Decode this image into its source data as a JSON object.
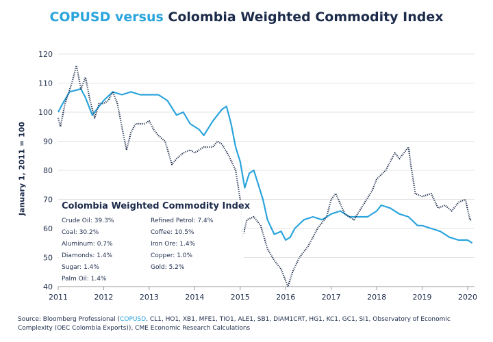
{
  "title": {
    "highlight": "COPUSD versus",
    "rest": "Colombia Weighted Commodity Index"
  },
  "colors": {
    "copusd": "#2aa4dc",
    "index": "#1c2b4a",
    "grid": "#e3e3e3"
  },
  "legend": {
    "title": "Colombia Weighted Commodity Index",
    "left": [
      "Crude Oil: 39.3%",
      "Coal: 30.2%",
      "Aluminum: 0.7%",
      "Diamonds: 1.4%",
      "Sugar: 1.4%",
      "Palm Oil: 1.4%"
    ],
    "right": [
      "Refined Petrol: 7.4%",
      "Coffee: 10.5%",
      "Iron Ore: 1.4%",
      "Copper: 1.0%",
      "Gold: 5.2%"
    ]
  },
  "source": {
    "prefix": "Source: Bloomberg Professional (",
    "highlight": "COPUSD",
    "rest": ", CL1, HO1, XB1, MFE1, TIO1, ALE1, SB1, DIAM1CRT, HG1, KC1, GC1, SI1, Observatory of Economic Complexity (OEC Colombia Exports)), CME Economic Research Calculations"
  },
  "chart_data": {
    "type": "line",
    "title": "COPUSD versus Colombia Weighted Commodity Index",
    "ylabel": "January 1, 2011 = 100",
    "xlabel": "",
    "xlim": [
      2011,
      2020.15
    ],
    "ylim": [
      40,
      120
    ],
    "xticks": [
      "2011",
      "2012",
      "2013",
      "2014",
      "2015",
      "2016",
      "2017",
      "2018",
      "2019",
      "2020"
    ],
    "yticks": [
      "40",
      "50",
      "60",
      "70",
      "80",
      "90",
      "100",
      "110",
      "120"
    ],
    "grid": true,
    "series": [
      {
        "key": "copusd",
        "style": "solid",
        "x": [
          2011.0,
          2011.1,
          2011.25,
          2011.5,
          2011.6,
          2011.75,
          2011.9,
          2012.0,
          2012.2,
          2012.4,
          2012.6,
          2012.8,
          2013.0,
          2013.2,
          2013.4,
          2013.6,
          2013.75,
          2013.9,
          2014.1,
          2014.2,
          2014.4,
          2014.5,
          2014.6,
          2014.7,
          2014.8,
          2014.9,
          2015.0,
          2015.1,
          2015.2,
          2015.3,
          2015.4,
          2015.5,
          2015.6,
          2015.75,
          2015.9,
          2016.0,
          2016.1,
          2016.2,
          2016.4,
          2016.6,
          2016.8,
          2017.0,
          2017.2,
          2017.4,
          2017.6,
          2017.8,
          2018.0,
          2018.1,
          2018.3,
          2018.5,
          2018.7,
          2018.9,
          2019.0,
          2019.2,
          2019.4,
          2019.6,
          2019.8,
          2020.0,
          2020.1
        ],
        "y": [
          100,
          103,
          107,
          108,
          105,
          99,
          102,
          104,
          107,
          106,
          107,
          106,
          106,
          106,
          104,
          99,
          100,
          96,
          94,
          92,
          97,
          99,
          101,
          102,
          96,
          88,
          83,
          74,
          79,
          80,
          75,
          70,
          63,
          58,
          59,
          56,
          57,
          60,
          63,
          64,
          63,
          65,
          66,
          64,
          64,
          64,
          66,
          68,
          67,
          65,
          64,
          61,
          61,
          60,
          59,
          57,
          56,
          56,
          55
        ]
      },
      {
        "key": "index",
        "style": "dotted",
        "x": [
          2011.0,
          2011.05,
          2011.15,
          2011.3,
          2011.4,
          2011.5,
          2011.6,
          2011.7,
          2011.8,
          2011.9,
          2012.0,
          2012.1,
          2012.2,
          2012.3,
          2012.4,
          2012.5,
          2012.6,
          2012.7,
          2012.9,
          2013.0,
          2013.1,
          2013.2,
          2013.35,
          2013.5,
          2013.6,
          2013.75,
          2013.9,
          2014.0,
          2014.2,
          2014.4,
          2014.5,
          2014.6,
          2014.75,
          2014.9,
          2015.0,
          2015.05,
          2015.15,
          2015.3,
          2015.45,
          2015.6,
          2015.75,
          2015.9,
          2016.0,
          2016.05,
          2016.15,
          2016.3,
          2016.5,
          2016.7,
          2016.9,
          2017.0,
          2017.1,
          2017.3,
          2017.5,
          2017.7,
          2017.9,
          2018.0,
          2018.2,
          2018.4,
          2018.5,
          2018.7,
          2018.75,
          2018.85,
          2019.0,
          2019.2,
          2019.35,
          2019.5,
          2019.65,
          2019.8,
          2019.95,
          2020.05,
          2020.1
        ],
        "y": [
          98,
          95,
          103,
          110,
          116,
          108,
          112,
          104,
          98,
          103,
          103,
          104,
          107,
          103,
          95,
          87,
          93,
          96,
          96,
          97,
          94,
          92,
          90,
          82,
          84,
          86,
          87,
          86,
          88,
          88,
          90,
          89,
          85,
          80,
          70,
          57,
          63,
          64,
          61,
          53,
          49,
          46,
          42,
          40,
          45,
          50,
          54,
          60,
          64,
          70,
          72,
          65,
          63,
          68,
          73,
          77,
          80,
          86,
          84,
          88,
          82,
          72,
          71,
          72,
          67,
          68,
          66,
          69,
          70,
          63,
          63
        ]
      }
    ]
  }
}
